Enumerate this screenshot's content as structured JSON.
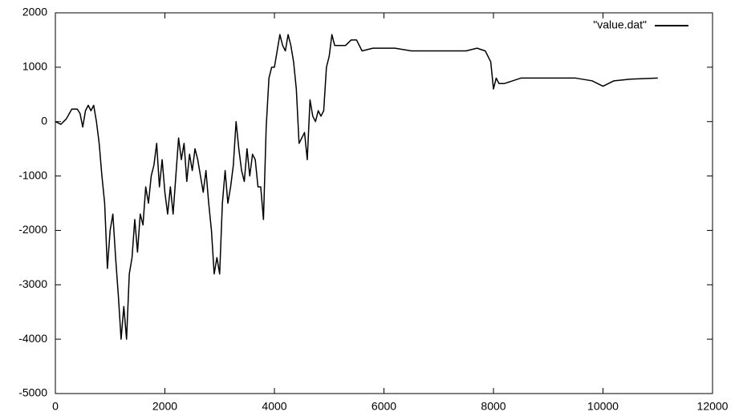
{
  "chart_data": {
    "type": "line",
    "legend": "top-right",
    "xlim": [
      0,
      12000
    ],
    "xticks": [
      0,
      2000,
      4000,
      6000,
      8000,
      10000,
      12000
    ],
    "ylim": [
      -5000,
      2000
    ],
    "yticks": [
      -5000,
      -4000,
      -3000,
      -2000,
      -1000,
      0,
      1000,
      2000
    ],
    "series": [
      {
        "name": "\"value.dat\"",
        "color": "#000000",
        "x": [
          0,
          100,
          200,
          300,
          400,
          450,
          500,
          550,
          600,
          650,
          700,
          750,
          800,
          850,
          900,
          950,
          1000,
          1050,
          1100,
          1150,
          1200,
          1250,
          1300,
          1350,
          1400,
          1450,
          1500,
          1550,
          1600,
          1650,
          1700,
          1750,
          1800,
          1850,
          1900,
          1950,
          2000,
          2050,
          2100,
          2150,
          2200,
          2250,
          2300,
          2350,
          2400,
          2450,
          2500,
          2550,
          2600,
          2650,
          2700,
          2750,
          2800,
          2850,
          2900,
          2950,
          3000,
          3050,
          3100,
          3150,
          3200,
          3250,
          3300,
          3350,
          3400,
          3450,
          3500,
          3550,
          3600,
          3650,
          3700,
          3750,
          3800,
          3850,
          3900,
          3950,
          4000,
          4050,
          4100,
          4150,
          4200,
          4250,
          4300,
          4350,
          4400,
          4450,
          4500,
          4550,
          4600,
          4650,
          4700,
          4750,
          4800,
          4850,
          4900,
          4950,
          5000,
          5050,
          5100,
          5200,
          5300,
          5400,
          5500,
          5600,
          5800,
          6000,
          6200,
          6500,
          7000,
          7500,
          7700,
          7850,
          7950,
          8000,
          8050,
          8100,
          8200,
          8500,
          9000,
          9500,
          9800,
          10000,
          10200,
          10500,
          11000
        ],
        "values": [
          0,
          -50,
          50,
          230,
          230,
          150,
          -100,
          200,
          300,
          200,
          300,
          0,
          -400,
          -1000,
          -1500,
          -2700,
          -2000,
          -1700,
          -2500,
          -3200,
          -4000,
          -3400,
          -4000,
          -2800,
          -2500,
          -1800,
          -2400,
          -1700,
          -1900,
          -1200,
          -1500,
          -1000,
          -800,
          -400,
          -1200,
          -700,
          -1300,
          -1700,
          -1200,
          -1700,
          -1000,
          -300,
          -700,
          -400,
          -1100,
          -600,
          -900,
          -500,
          -700,
          -1000,
          -1300,
          -900,
          -1500,
          -2000,
          -2800,
          -2500,
          -2800,
          -1500,
          -900,
          -1500,
          -1200,
          -800,
          0,
          -500,
          -900,
          -1100,
          -500,
          -1000,
          -600,
          -700,
          -1200,
          -1200,
          -1800,
          -100,
          800,
          1000,
          1000,
          1300,
          1600,
          1400,
          1300,
          1600,
          1400,
          1100,
          600,
          -400,
          -300,
          -200,
          -700,
          400,
          100,
          0,
          200,
          100,
          200,
          1000,
          1200,
          1600,
          1400,
          1400,
          1400,
          1500,
          1500,
          1300,
          1350,
          1350,
          1350,
          1300,
          1300,
          1300,
          1350,
          1300,
          1100,
          600,
          800,
          700,
          700,
          800,
          800,
          800,
          750,
          650,
          750,
          780,
          800
        ]
      }
    ]
  }
}
